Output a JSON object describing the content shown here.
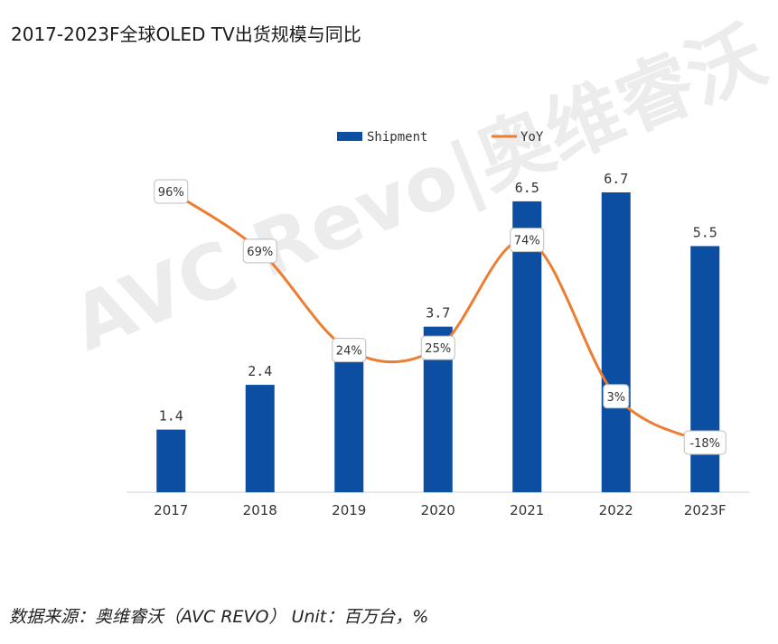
{
  "header": {
    "title": "2017-2023F全球OLED TV出货规模与同比"
  },
  "footer": {
    "source": "数据来源：奥维睿沃（AVC REVO） Unit：百万台，%"
  },
  "watermark": {
    "text": "AVC Revo|奥维睿沃"
  },
  "chart_data": {
    "type": "bar",
    "categories": [
      "2017",
      "2018",
      "2019",
      "2020",
      "2021",
      "2022",
      "2023F"
    ],
    "series": [
      {
        "name": "Shipment",
        "type": "bar",
        "color": "#0b4ea2",
        "values": [
          1.4,
          2.4,
          3.2,
          3.7,
          6.5,
          6.7,
          5.5
        ],
        "labels": [
          "1.4",
          "2.4",
          "",
          "3.7",
          "6.5",
          "6.7",
          "5.5"
        ]
      },
      {
        "name": "YoY",
        "type": "line",
        "color": "#ed7d31",
        "values": [
          96,
          69,
          24,
          25,
          74,
          3,
          -18
        ],
        "labels": [
          "96%",
          "69%",
          "24%",
          "25%",
          "74%",
          "3%",
          "-18%"
        ]
      }
    ],
    "legend": "top-center",
    "grid": false
  }
}
